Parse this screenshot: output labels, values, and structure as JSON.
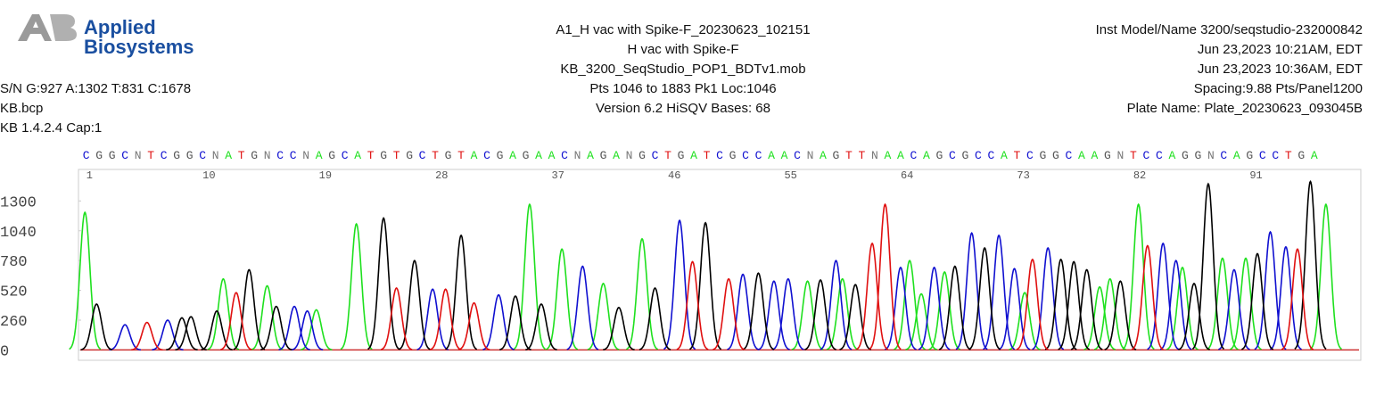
{
  "header": {
    "logo": [
      "Applied",
      "Biosystems"
    ],
    "left": [
      "S/N G:927 A:1302 T:831 C:1678",
      "KB.bcp",
      "KB 1.4.2.4     Cap:1"
    ],
    "center": [
      "A1_H vac with Spike-F_20230623_102151",
      "H vac with Spike-F",
      "KB_3200_SeqStudio_POP1_BDTv1.mob",
      "Pts 1046 to 1883 Pk1 Loc:1046",
      "Version 6.2    HiSQV Bases: 68"
    ],
    "right": [
      "Inst Model/Name 3200/seqstudio-232000842",
      "Jun 23,2023 10:21AM, EDT",
      "Jun 23,2023 10:36AM, EDT",
      "Spacing:9.88  Pts/Panel1200",
      "Plate Name: Plate_20230623_093045B"
    ]
  },
  "chart_data": {
    "type": "chromatogram",
    "bases": [
      "C",
      "G",
      "G",
      "C",
      "N",
      "T",
      "C",
      "G",
      "G",
      "C",
      "N",
      "A",
      "T",
      "G",
      "N",
      "C",
      "C",
      "N",
      "A",
      "G",
      "C",
      "A",
      "T",
      "G",
      "T",
      "G",
      "C",
      "T",
      "G",
      "T",
      "A",
      "C",
      "G",
      "A",
      "G",
      "A",
      "A",
      "C",
      "N",
      "A",
      "G",
      "A",
      "N",
      "G",
      "C",
      "T",
      "G",
      "A",
      "T",
      "C",
      "G",
      "C",
      "C",
      "A",
      "A",
      "C",
      "N",
      "A",
      "G",
      "T",
      "T",
      "N",
      "A",
      "A",
      "C",
      "A",
      "G",
      "C",
      "G",
      "C",
      "C",
      "A",
      "T",
      "C",
      "G",
      "G",
      "C",
      "A",
      "A",
      "G",
      "N",
      "T",
      "C",
      "C",
      "A",
      "G",
      "G",
      "N",
      "C",
      "A",
      "G",
      "C",
      "C",
      "T",
      "G",
      "A"
    ],
    "xlim": [
      0.4,
      99.6
    ],
    "xticks": [
      1,
      10,
      19,
      28,
      37,
      46,
      55,
      64,
      73,
      82,
      91
    ],
    "ylim": [
      -90,
      1575
    ],
    "yticks": [
      0,
      260,
      520,
      780,
      1040,
      1300
    ],
    "series": [
      {
        "base": "A",
        "color": "#1ee01e",
        "x": [
          0.9,
          11.6,
          15.0,
          18.8,
          21.9,
          35.3,
          37.8,
          41.0,
          44.0,
          56.8,
          59.5,
          64.7,
          65.6,
          67.4,
          73.6,
          79.4,
          80.2,
          82.4,
          85.8,
          88.9,
          90.7,
          96.9
        ],
        "values": [
          1200,
          620,
          560,
          350,
          1100,
          1270,
          880,
          580,
          970,
          600,
          620,
          780,
          490,
          680,
          500,
          550,
          620,
          1270,
          720,
          800,
          800,
          1270
        ]
      },
      {
        "base": "C",
        "color": "#1010d0",
        "x": [
          4.0,
          7.3,
          17.1,
          18.1,
          27.8,
          32.9,
          39.4,
          46.9,
          51.8,
          54.2,
          55.3,
          59.0,
          64.0,
          66.6,
          69.5,
          71.6,
          72.8,
          75.4,
          84.3,
          85.3,
          89.8,
          92.6,
          93.8
        ],
        "values": [
          220,
          260,
          380,
          340,
          530,
          480,
          730,
          1130,
          660,
          600,
          620,
          780,
          720,
          720,
          1020,
          1000,
          710,
          890,
          930,
          780,
          700,
          1030,
          900
        ]
      },
      {
        "base": "G",
        "color": "#000000",
        "x": [
          1.8,
          8.4,
          9.1,
          11.1,
          13.6,
          15.7,
          24.0,
          26.4,
          30.0,
          34.2,
          36.2,
          42.2,
          45.0,
          48.9,
          53.0,
          57.8,
          60.5,
          68.2,
          70.5,
          76.4,
          77.4,
          78.4,
          81.0,
          86.7,
          87.8,
          91.6,
          95.7
        ],
        "values": [
          400,
          280,
          290,
          340,
          700,
          380,
          1150,
          780,
          1000,
          470,
          400,
          370,
          540,
          1110,
          670,
          610,
          570,
          730,
          890,
          790,
          770,
          700,
          600,
          580,
          1450,
          840,
          1470
        ]
      },
      {
        "base": "T",
        "color": "#e01010",
        "x": [
          5.7,
          12.6,
          25.0,
          28.8,
          31.0,
          47.9,
          50.7,
          61.8,
          62.8,
          74.2,
          83.1,
          94.7
        ],
        "values": [
          240,
          500,
          540,
          530,
          410,
          770,
          620,
          930,
          1270,
          790,
          910,
          880
        ]
      }
    ]
  }
}
